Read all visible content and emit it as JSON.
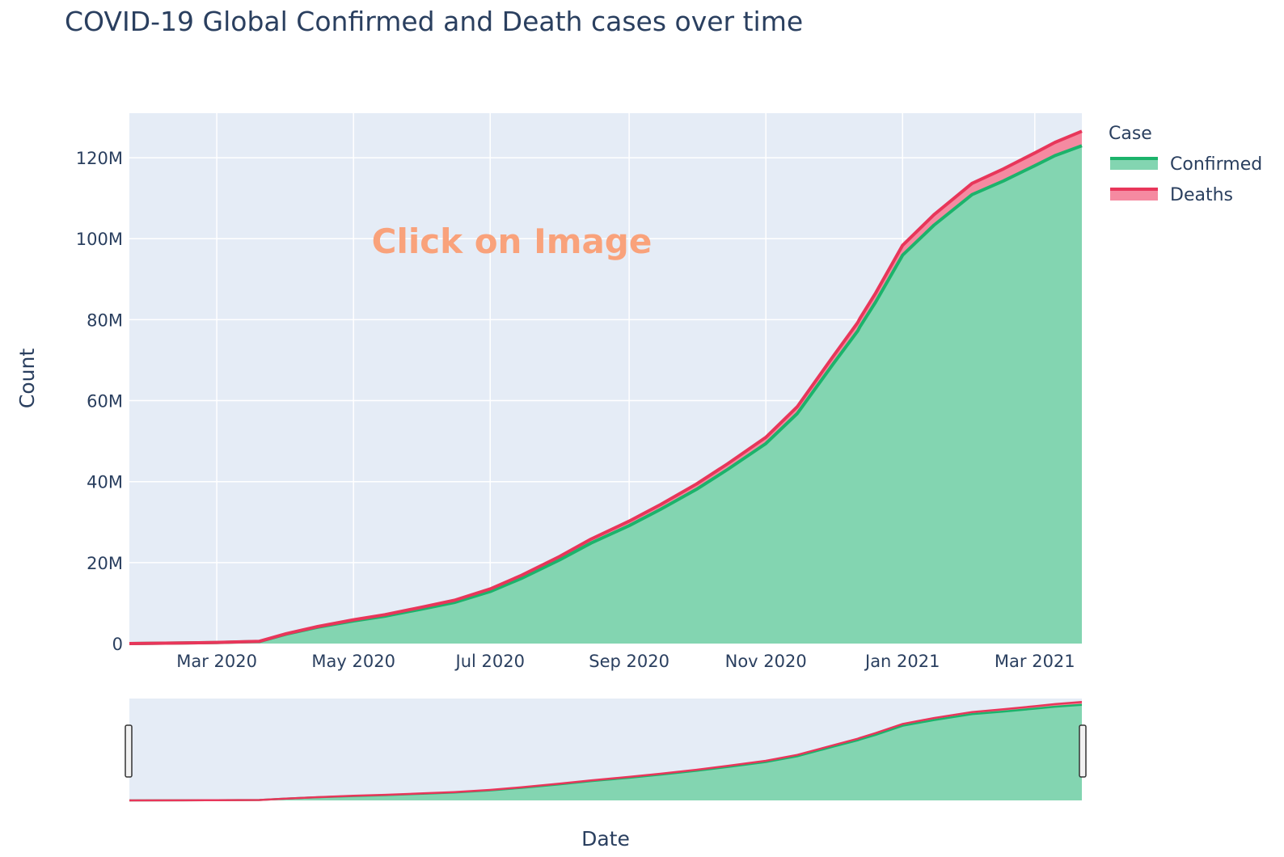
{
  "chart_data": {
    "type": "area",
    "title": "COVID-19 Global Confirmed and Death cases over time",
    "xlabel": "Date",
    "ylabel": "Count",
    "ylim": [
      0,
      131000000
    ],
    "xlim": [
      "2020-01-22",
      "2021-03-22"
    ],
    "yticks": [
      {
        "value": 0,
        "label": "0"
      },
      {
        "value": 20000000,
        "label": "20M"
      },
      {
        "value": 40000000,
        "label": "40M"
      },
      {
        "value": 60000000,
        "label": "60M"
      },
      {
        "value": 80000000,
        "label": "80M"
      },
      {
        "value": 100000000,
        "label": "100M"
      },
      {
        "value": 120000000,
        "label": "120M"
      }
    ],
    "xticks": [
      {
        "value": "2020-03-01",
        "label": "Mar 2020"
      },
      {
        "value": "2020-05-01",
        "label": "May 2020"
      },
      {
        "value": "2020-07-01",
        "label": "Jul 2020"
      },
      {
        "value": "2020-09-01",
        "label": "Sep 2020"
      },
      {
        "value": "2020-11-01",
        "label": "Nov 2020"
      },
      {
        "value": "2021-01-01",
        "label": "Jan 2021"
      },
      {
        "value": "2021-03-01",
        "label": "Mar 2021"
      }
    ],
    "stacked": true,
    "grid": true,
    "legend_title": "Case",
    "legend_position": "top-right",
    "annotation": "Click on Image",
    "annotation_color": "#f9a27b",
    "range_slider": true,
    "background_color": "#e5ecf6",
    "x": [
      "2020-01-22",
      "2020-02-15",
      "2020-03-01",
      "2020-03-20",
      "2020-04-01",
      "2020-04-15",
      "2020-05-01",
      "2020-05-15",
      "2020-06-01",
      "2020-06-15",
      "2020-07-01",
      "2020-07-15",
      "2020-08-01",
      "2020-08-15",
      "2020-09-01",
      "2020-09-15",
      "2020-10-01",
      "2020-10-15",
      "2020-11-01",
      "2020-11-15",
      "2020-12-01",
      "2020-12-12",
      "2020-12-13",
      "2020-12-20",
      "2021-01-01",
      "2021-01-15",
      "2021-02-01",
      "2021-02-15",
      "2021-03-01",
      "2021-03-10",
      "2021-03-22"
    ],
    "series": [
      {
        "name": "Confirmed",
        "color": "#1cb36b",
        "fill": "#83d5b1",
        "values": [
          0,
          0.1,
          0.2,
          0.4,
          1.8,
          3.1,
          4.3,
          5.2,
          6.6,
          7.8,
          9.9,
          12.4,
          15.9,
          19.1,
          22.4,
          25.5,
          29.3,
          33.1,
          38.0,
          43.7,
          53.1,
          59.4,
          60.2,
          64.9,
          73.8,
          79.5,
          85.3,
          87.9,
          90.8,
          92.7,
          94.6
        ]
      },
      {
        "name": "Deaths",
        "color": "#e8365a",
        "fill": "#f58aa1",
        "values": [
          0,
          0.01,
          0.02,
          0.03,
          0.07,
          0.13,
          0.22,
          0.29,
          0.36,
          0.42,
          0.49,
          0.57,
          0.65,
          0.75,
          0.85,
          0.91,
          1.0,
          1.08,
          1.18,
          1.3,
          1.45,
          1.6,
          1.6,
          1.7,
          1.87,
          1.98,
          2.14,
          2.28,
          2.41,
          2.53,
          2.74
        ]
      }
    ],
    "values_unit_multiplier": 1300000
  }
}
